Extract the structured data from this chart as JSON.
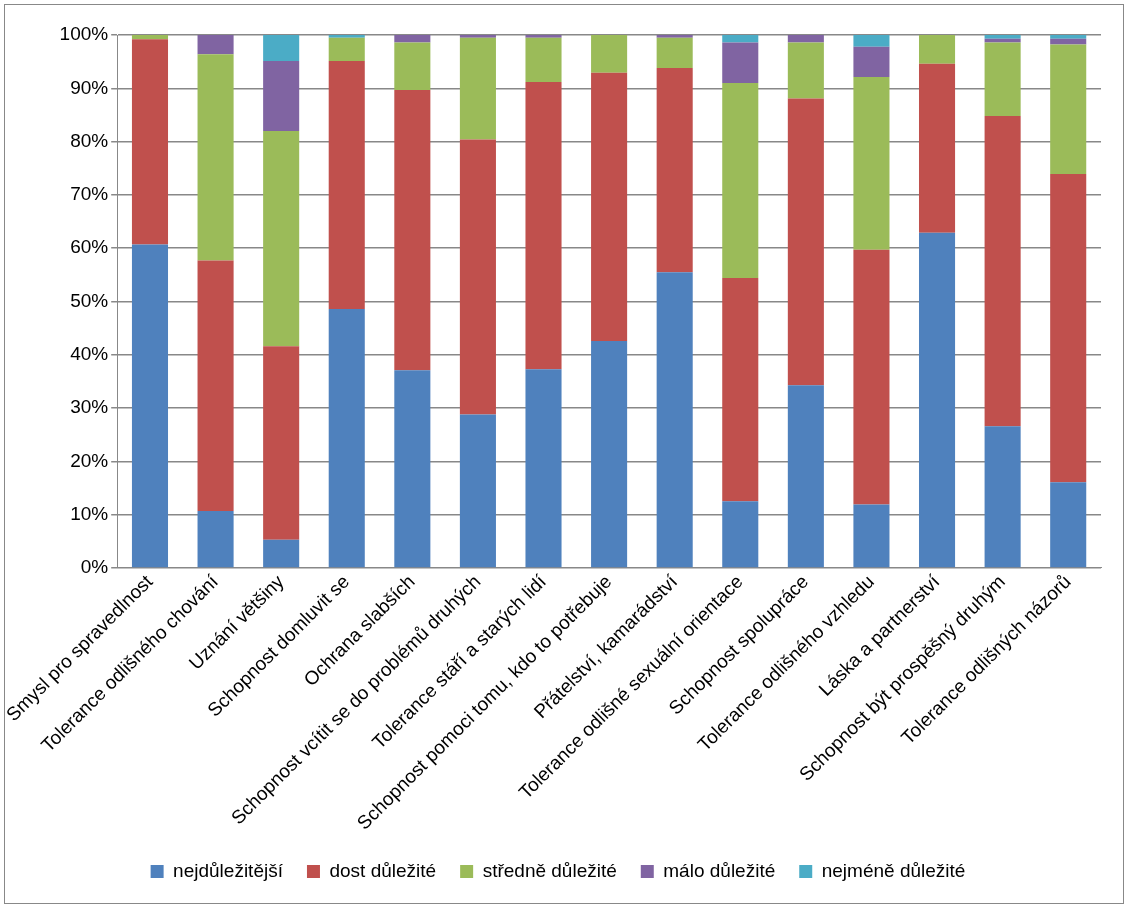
{
  "chart_data": {
    "type": "bar",
    "stacked": true,
    "grid": "y",
    "legend": "bottom",
    "categories": [
      "Smysl pro spravedlnost",
      "Tolerance odlišného chování",
      "Uznání většiny",
      "Schopnost domluvit se",
      "Ochrana slabších",
      "Schopnost vcítit se do problémů druhých",
      "Tolerance stáří a starých lidí",
      "Schopnost pomoci tomu, kdo to potřebuje",
      "Přátelství, kamarádství",
      "Tolerance odlišné sexuální orientace",
      "Schopnost spolupráce",
      "Tolerance odlišného vzhledu",
      "Láska a partnerství",
      "Schopnost být prospěšný druhým",
      "Tolerance odlišných názorů"
    ],
    "ylim": [
      0,
      100
    ],
    "yticks": [
      {
        "value": 0,
        "label": "0%"
      },
      {
        "value": 10,
        "label": "10%"
      },
      {
        "value": 20,
        "label": "20%"
      },
      {
        "value": 30,
        "label": "30%"
      },
      {
        "value": 40,
        "label": "40%"
      },
      {
        "value": 50,
        "label": "50%"
      },
      {
        "value": 60,
        "label": "60%"
      },
      {
        "value": 70,
        "label": "70%"
      },
      {
        "value": 80,
        "label": "80%"
      },
      {
        "value": 90,
        "label": "90%"
      },
      {
        "value": 100,
        "label": "100%"
      }
    ],
    "series": [
      {
        "name": "nejdůležitější",
        "color": "#4f81bd",
        "values": [
          60.7,
          10.7,
          5.3,
          48.6,
          37.1,
          28.8,
          37.3,
          42.6,
          55.5,
          12.5,
          34.3,
          11.9,
          62.9,
          26.6,
          16.1
        ]
      },
      {
        "name": "dost důležité",
        "color": "#c0504d",
        "values": [
          38.5,
          47.0,
          36.3,
          46.5,
          52.6,
          51.6,
          53.9,
          50.3,
          38.3,
          41.9,
          53.8,
          47.8,
          31.7,
          58.2,
          57.8
        ]
      },
      {
        "name": "středně důležité",
        "color": "#9bbb59",
        "values": [
          0.8,
          38.7,
          40.4,
          4.4,
          8.9,
          19.1,
          8.3,
          7.1,
          5.7,
          36.6,
          10.5,
          32.4,
          5.4,
          13.8,
          24.3
        ]
      },
      {
        "name": "málo důležité",
        "color": "#8064a2",
        "values": [
          0,
          3.6,
          13.1,
          0,
          1.4,
          0.5,
          0.5,
          0,
          0.5,
          7.6,
          1.4,
          5.7,
          0,
          0.7,
          1.1
        ]
      },
      {
        "name": "nejméně důležité",
        "color": "#4bacc6",
        "values": [
          0,
          0,
          4.9,
          0.5,
          0,
          0,
          0,
          0,
          0,
          1.4,
          0,
          2.2,
          0,
          0.7,
          0.7
        ]
      }
    ]
  }
}
